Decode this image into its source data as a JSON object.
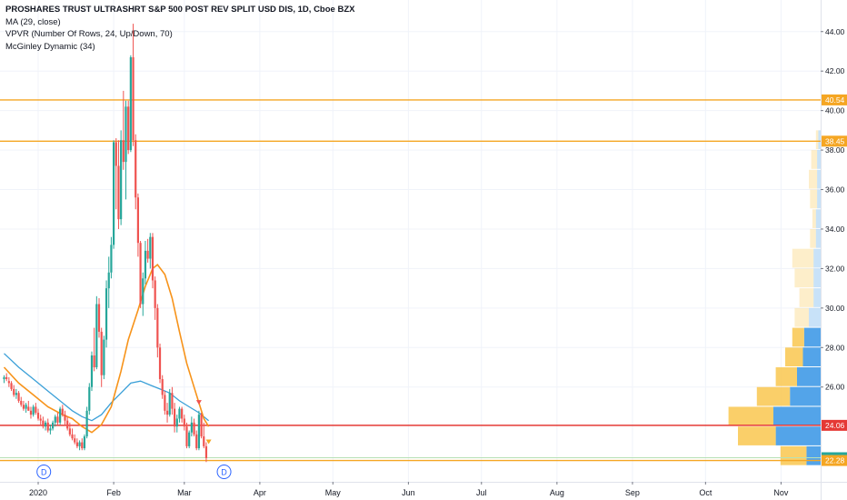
{
  "legend": {
    "title": "PROSHARES TRUST ULTRASHRT S&P 500 POST REV SPLIT USD DIS, 1D, Cboe BZX",
    "ma": "MA (29, close)",
    "vpvr": "VPVR (Number Of Rows, 24, Up/Down, 70)",
    "mcginley": "McGinley Dynamic (34)"
  },
  "colors": {
    "up": "#26a69a",
    "down": "#ef5350",
    "ma": "#f7931a",
    "mcginley": "#3ba0d8",
    "hline_orange": "#f5a623",
    "hline_red": "#e53935",
    "vp_up": "#f9c74f",
    "vp_down": "#4a9fe8",
    "grid": "#f0f3fa",
    "axis_text": "#131722"
  },
  "chart_data": {
    "type": "candlestick",
    "x_axis": {
      "tick_labels": [
        "2020",
        "Feb",
        "Mar",
        "Apr",
        "May",
        "Jun",
        "Jul",
        "Aug",
        "Sep",
        "Oct",
        "Nov"
      ],
      "tick_day_index": [
        14,
        45,
        74,
        105,
        135,
        166,
        196,
        227,
        258,
        288,
        319
      ]
    },
    "y_axis": {
      "ylim": [
        21.2,
        45.6
      ],
      "ticks": [
        26,
        28,
        30,
        32,
        34,
        36,
        38,
        40,
        42,
        44
      ],
      "tick_labels": [
        "26.00",
        "28.00",
        "30.00",
        "32.00",
        "34.00",
        "36.00",
        "38.00",
        "40.00",
        "42.00",
        "44.00"
      ],
      "side": "right"
    },
    "candles_ohlc": [
      [
        26.4,
        26.6,
        26.2,
        26.5
      ],
      [
        26.5,
        26.7,
        26.3,
        26.4
      ],
      [
        26.3,
        26.5,
        26.0,
        26.2
      ],
      [
        26.2,
        26.3,
        25.8,
        25.9
      ],
      [
        25.9,
        26.1,
        25.5,
        25.6
      ],
      [
        25.6,
        25.9,
        25.4,
        25.7
      ],
      [
        25.7,
        25.8,
        25.2,
        25.3
      ],
      [
        25.3,
        25.5,
        25.0,
        25.1
      ],
      [
        25.1,
        25.3,
        24.8,
        24.9
      ],
      [
        24.9,
        25.2,
        24.7,
        25.1
      ],
      [
        25.0,
        25.3,
        24.8,
        24.8
      ],
      [
        24.8,
        25.0,
        24.4,
        24.6
      ],
      [
        24.6,
        25.1,
        24.5,
        25.0
      ],
      [
        25.0,
        25.2,
        24.6,
        24.7
      ],
      [
        24.7,
        24.9,
        24.3,
        24.4
      ],
      [
        24.4,
        24.6,
        24.1,
        24.3
      ],
      [
        24.3,
        24.5,
        23.9,
        24.0
      ],
      [
        24.0,
        24.3,
        23.8,
        24.2
      ],
      [
        24.2,
        24.4,
        23.7,
        23.8
      ],
      [
        23.8,
        24.1,
        23.6,
        23.9
      ],
      [
        23.9,
        24.3,
        23.8,
        24.2
      ],
      [
        24.2,
        24.6,
        24.0,
        24.5
      ],
      [
        24.5,
        24.7,
        24.1,
        24.2
      ],
      [
        24.2,
        25.0,
        24.1,
        24.9
      ],
      [
        24.9,
        25.1,
        24.5,
        24.6
      ],
      [
        24.6,
        24.8,
        24.1,
        24.3
      ],
      [
        24.3,
        24.5,
        23.8,
        23.9
      ],
      [
        23.9,
        24.2,
        23.5,
        23.6
      ],
      [
        23.6,
        23.9,
        23.3,
        23.4
      ],
      [
        23.4,
        23.6,
        23.1,
        23.2
      ],
      [
        23.2,
        23.4,
        22.9,
        23.0
      ],
      [
        23.0,
        23.3,
        22.8,
        23.2
      ],
      [
        23.2,
        23.4,
        22.8,
        22.9
      ],
      [
        22.9,
        23.6,
        22.8,
        23.5
      ],
      [
        23.5,
        25.0,
        23.4,
        24.8
      ],
      [
        24.8,
        26.2,
        24.6,
        26.0
      ],
      [
        26.0,
        27.8,
        25.8,
        27.6
      ],
      [
        27.6,
        29.0,
        26.8,
        27.0
      ],
      [
        27.0,
        30.6,
        26.9,
        30.2
      ],
      [
        30.2,
        30.5,
        28.5,
        28.8
      ],
      [
        28.8,
        29.0,
        26.0,
        26.6
      ],
      [
        26.6,
        28.6,
        26.4,
        28.4
      ],
      [
        28.4,
        31.4,
        28.0,
        31.0
      ],
      [
        31.0,
        32.6,
        30.0,
        31.8
      ],
      [
        31.8,
        33.6,
        31.5,
        33.2
      ],
      [
        33.2,
        38.5,
        33.0,
        38.4
      ],
      [
        38.4,
        38.6,
        35.0,
        37.2
      ],
      [
        37.2,
        38.5,
        34.0,
        34.5
      ],
      [
        34.5,
        39.0,
        34.2,
        38.5
      ],
      [
        38.5,
        41.0,
        37.0,
        37.4
      ],
      [
        37.4,
        40.5,
        35.5,
        40.2
      ],
      [
        40.2,
        40.5,
        37.8,
        38.0
      ],
      [
        38.0,
        42.8,
        37.9,
        42.7
      ],
      [
        42.7,
        44.4,
        38.2,
        38.5
      ],
      [
        38.5,
        38.8,
        35.0,
        35.6
      ],
      [
        35.6,
        35.8,
        32.6,
        33.3
      ],
      [
        33.3,
        33.4,
        30.0,
        30.2
      ],
      [
        30.2,
        31.8,
        29.6,
        31.5
      ],
      [
        31.5,
        33.4,
        31.2,
        32.9
      ],
      [
        32.9,
        33.5,
        32.3,
        32.5
      ],
      [
        32.5,
        33.8,
        32.0,
        33.6
      ],
      [
        33.6,
        33.8,
        31.0,
        31.4
      ],
      [
        31.4,
        31.6,
        29.4,
        30.0
      ],
      [
        30.0,
        30.2,
        27.5,
        28.0
      ],
      [
        28.0,
        28.2,
        26.2,
        26.4
      ],
      [
        26.4,
        26.6,
        25.4,
        25.6
      ],
      [
        25.6,
        25.8,
        24.6,
        24.8
      ],
      [
        24.8,
        25.2,
        24.2,
        24.6
      ],
      [
        24.6,
        25.9,
        24.5,
        25.7
      ],
      [
        25.7,
        26.0,
        24.6,
        24.9
      ],
      [
        24.9,
        25.2,
        23.7,
        24.0
      ],
      [
        24.0,
        24.6,
        23.7,
        24.4
      ],
      [
        24.4,
        25.0,
        24.2,
        24.9
      ],
      [
        24.9,
        25.0,
        24.2,
        24.4
      ],
      [
        24.4,
        24.6,
        23.8,
        24.0
      ],
      [
        24.0,
        24.2,
        22.9,
        23.0
      ],
      [
        23.0,
        23.8,
        22.9,
        23.7
      ],
      [
        23.7,
        24.5,
        23.5,
        24.2
      ],
      [
        24.2,
        24.4,
        23.5,
        23.6
      ],
      [
        23.6,
        23.8,
        22.8,
        22.9
      ],
      [
        22.9,
        24.8,
        22.8,
        24.6
      ],
      [
        24.6,
        24.7,
        23.4,
        23.5
      ],
      [
        23.5,
        24.2,
        22.9,
        23.0
      ],
      [
        23.0,
        23.2,
        22.2,
        22.4
      ]
    ],
    "ma_29": [
      [
        0,
        27.0
      ],
      [
        6,
        26.2
      ],
      [
        12,
        25.6
      ],
      [
        18,
        25.0
      ],
      [
        24,
        24.6
      ],
      [
        28,
        24.4
      ],
      [
        32,
        24.0
      ],
      [
        36,
        23.7
      ],
      [
        40,
        24.1
      ],
      [
        44,
        25.0
      ],
      [
        48,
        26.8
      ],
      [
        51,
        28.4
      ],
      [
        55,
        29.9
      ],
      [
        58,
        31.1
      ],
      [
        61,
        32.0
      ],
      [
        63,
        32.2
      ],
      [
        66,
        31.7
      ],
      [
        69,
        30.5
      ],
      [
        72,
        28.8
      ],
      [
        75,
        27.2
      ],
      [
        78,
        26.0
      ],
      [
        80,
        25.2
      ],
      [
        82,
        24.4
      ],
      [
        84,
        24.0
      ]
    ],
    "mcginley_34": [
      [
        0,
        27.7
      ],
      [
        6,
        27.0
      ],
      [
        12,
        26.4
      ],
      [
        18,
        25.8
      ],
      [
        24,
        25.2
      ],
      [
        28,
        24.8
      ],
      [
        32,
        24.5
      ],
      [
        36,
        24.3
      ],
      [
        40,
        24.6
      ],
      [
        44,
        25.2
      ],
      [
        48,
        25.7
      ],
      [
        52,
        26.2
      ],
      [
        56,
        26.3
      ],
      [
        60,
        26.1
      ],
      [
        64,
        25.9
      ],
      [
        68,
        25.7
      ],
      [
        72,
        25.3
      ],
      [
        76,
        25.0
      ],
      [
        80,
        24.7
      ],
      [
        84,
        24.3
      ]
    ],
    "horizontal_lines": [
      {
        "price": 40.54,
        "label": "40.54",
        "kind": "orange"
      },
      {
        "price": 38.45,
        "label": "38.45",
        "kind": "orange"
      },
      {
        "price": 24.06,
        "label": "24.06",
        "kind": "red"
      },
      {
        "price": 22.42,
        "label": "22.42",
        "kind": "green"
      },
      {
        "price": 22.28,
        "label": "22.28",
        "kind": "orange"
      }
    ],
    "volume_profile_rows": [
      {
        "price": 22.5,
        "up": 0.22,
        "down": 0.12
      },
      {
        "price": 23.5,
        "up": 0.32,
        "down": 0.38
      },
      {
        "price": 24.5,
        "up": 0.38,
        "down": 0.4
      },
      {
        "price": 25.5,
        "up": 0.28,
        "down": 0.26
      },
      {
        "price": 26.5,
        "up": 0.18,
        "down": 0.2
      },
      {
        "price": 27.5,
        "up": 0.15,
        "down": 0.15
      },
      {
        "price": 28.5,
        "up": 0.1,
        "down": 0.14
      },
      {
        "price": 29.5,
        "up": 0.12,
        "down": 0.1
      },
      {
        "price": 30.5,
        "up": 0.12,
        "down": 0.06
      },
      {
        "price": 31.5,
        "up": 0.16,
        "down": 0.06
      },
      {
        "price": 32.5,
        "up": 0.18,
        "down": 0.06
      },
      {
        "price": 33.5,
        "up": 0.05,
        "down": 0.04
      },
      {
        "price": 34.5,
        "up": 0.03,
        "down": 0.04
      },
      {
        "price": 35.5,
        "up": 0.06,
        "down": 0.03
      },
      {
        "price": 36.5,
        "up": 0.07,
        "down": 0.03
      },
      {
        "price": 37.5,
        "up": 0.05,
        "down": 0.03
      },
      {
        "price": 38.5,
        "up": 0.02,
        "down": 0.02
      }
    ],
    "event_markers": [
      {
        "label": "D",
        "day_index": 4
      },
      {
        "label": "D",
        "day_index": 78
      }
    ],
    "signal_markers": [
      {
        "shape": "down-triangle",
        "day_index": 80,
        "price": 25.2
      },
      {
        "shape": "down-triangle",
        "day_index": 84,
        "price": 23.2
      }
    ]
  }
}
